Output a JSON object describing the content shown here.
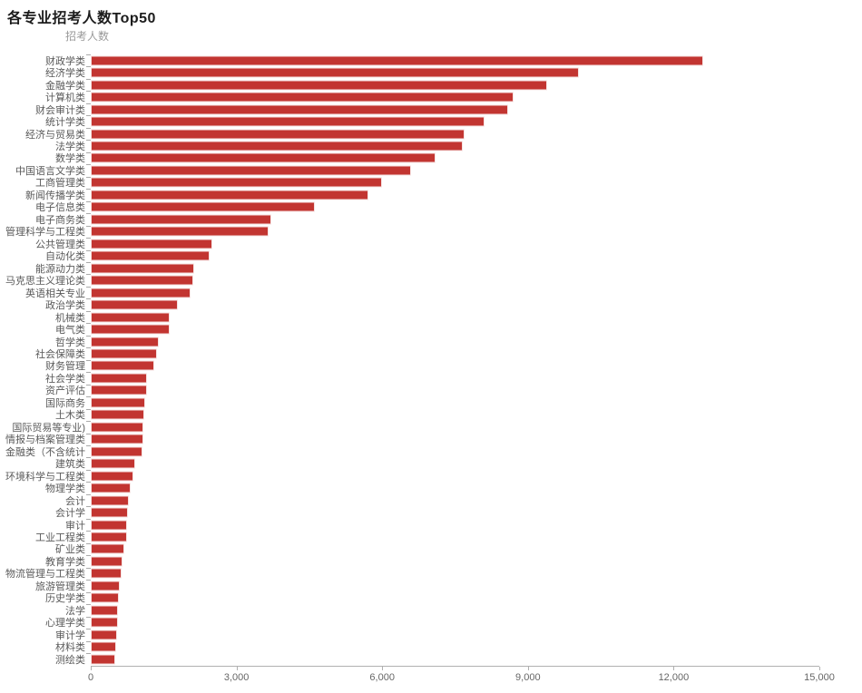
{
  "page": {
    "title": "各专业招考人数Top50",
    "axis_name": "招考人数"
  },
  "colors": {
    "bar": "#c23531",
    "title_text": "#1c1c1c",
    "category_label": "#595959",
    "axis_line": "#b0b0b0",
    "tick_label": "#666666",
    "axis_name_text": "#999999"
  },
  "chart_data": {
    "type": "bar",
    "orientation": "horizontal",
    "title": "各专业招考人数Top50",
    "series_name": "招考人数",
    "xlabel": "",
    "ylabel": "",
    "xlim": [
      0,
      15000
    ],
    "x_ticks": [
      "0",
      "3,000",
      "6,000",
      "9,000",
      "12,000",
      "15,000"
    ],
    "x_tick_values": [
      0,
      3000,
      6000,
      9000,
      12000,
      15000
    ],
    "grid": false,
    "legend_position": "top-left",
    "categories": [
      "财政学类",
      "经济学类",
      "金融学类",
      "计算机类",
      "财会审计类",
      "统计学类",
      "经济与贸易类",
      "法学类",
      "数学类",
      "中国语言文学类",
      "工商管理类",
      "新闻传播学类",
      "电子信息类",
      "电子商务类",
      "管理科学与工程类",
      "公共管理类",
      "自动化类",
      "能源动力类",
      "马克思主义理论类",
      "英语相关专业",
      "政治学类",
      "机械类",
      "电气类",
      "哲学类",
      "社会保障类",
      "财务管理",
      "社会学类",
      "资产评估",
      "国际商务",
      "土木类",
      "国际贸易等专业)",
      "情报与档案管理类",
      "金融类（不含统计",
      "建筑类",
      "环境科学与工程类",
      "物理学类",
      "会计",
      "会计学",
      "审计",
      "工业工程类",
      "矿业类",
      "教育学类",
      "物流管理与工程类",
      "旅游管理类",
      "历史学类",
      "法学",
      "心理学类",
      "审计学",
      "材料类",
      "测绘类"
    ],
    "values": [
      12600,
      10050,
      9400,
      8700,
      8600,
      8100,
      7700,
      7650,
      7100,
      6600,
      6000,
      5720,
      4620,
      3720,
      3670,
      2500,
      2440,
      2130,
      2110,
      2050,
      1790,
      1630,
      1620,
      1400,
      1370,
      1300,
      1160,
      1150,
      1130,
      1100,
      1090,
      1080,
      1060,
      910,
      870,
      820,
      790,
      760,
      750,
      740,
      700,
      660,
      630,
      600,
      580,
      565,
      560,
      540,
      515,
      500
    ]
  }
}
